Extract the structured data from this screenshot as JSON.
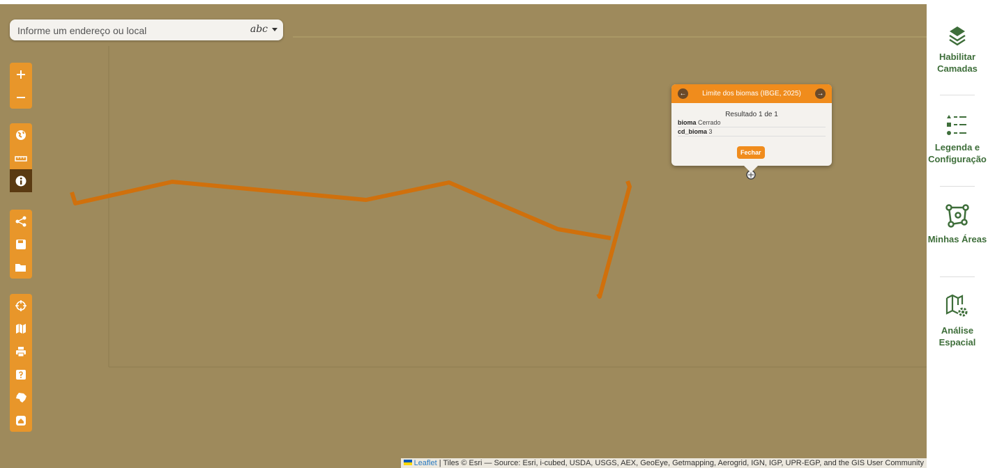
{
  "search": {
    "placeholder": "Informe um endereço ou local",
    "mode": "abc"
  },
  "popup": {
    "title": "Limite dos biomas (IBGE, 2025)",
    "result": "Resultado 1 de 1",
    "fields": [
      {
        "name": "bioma",
        "value": "Cerrado"
      },
      {
        "name": "cd_bioma",
        "value": 3
      }
    ],
    "close": "Fechar"
  },
  "sidebar": [
    {
      "label": "Habilitar Camadas"
    },
    {
      "label": "Legenda e Configuração"
    },
    {
      "label": "Minhas Áreas"
    },
    {
      "label": "Análise Espacial"
    }
  ],
  "attribution": {
    "link": "Leaflet",
    "text": "| Tiles © Esri — Source: Esri, i-cubed, USDA, USGS, AEX, GeoEye, Getmapping, Aerogrid, IGN, IGP, UPR-EGP, and the GIS User Community"
  }
}
